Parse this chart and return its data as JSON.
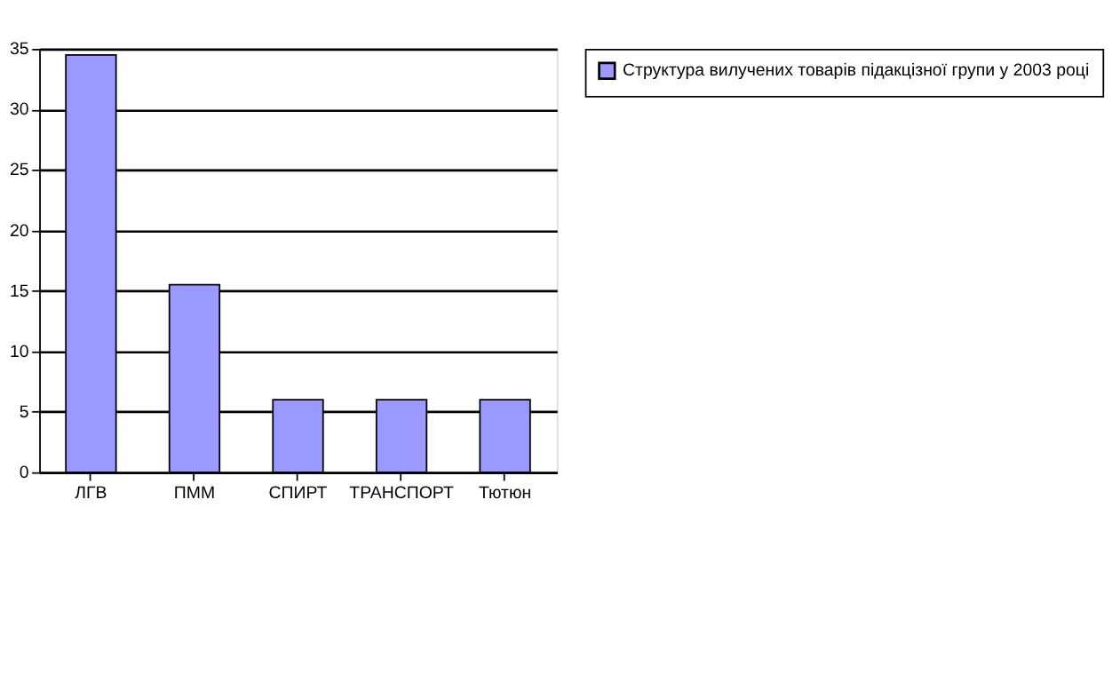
{
  "chart_data": {
    "type": "bar",
    "categories": [
      "ЛГВ",
      "ПММ",
      "СПИРТ",
      "ТРАНСПОРТ",
      "Тютюн"
    ],
    "series": [
      {
        "name": "Структура вилучених товарів підакцізної групи у 2003 році",
        "color": "#9999ff",
        "values": [
          34.5,
          15.5,
          6,
          6,
          6
        ]
      }
    ],
    "ylim": [
      0,
      35
    ],
    "yticks": [
      0,
      5,
      10,
      15,
      20,
      25,
      30,
      35
    ],
    "grid": "y",
    "legend": "right"
  }
}
